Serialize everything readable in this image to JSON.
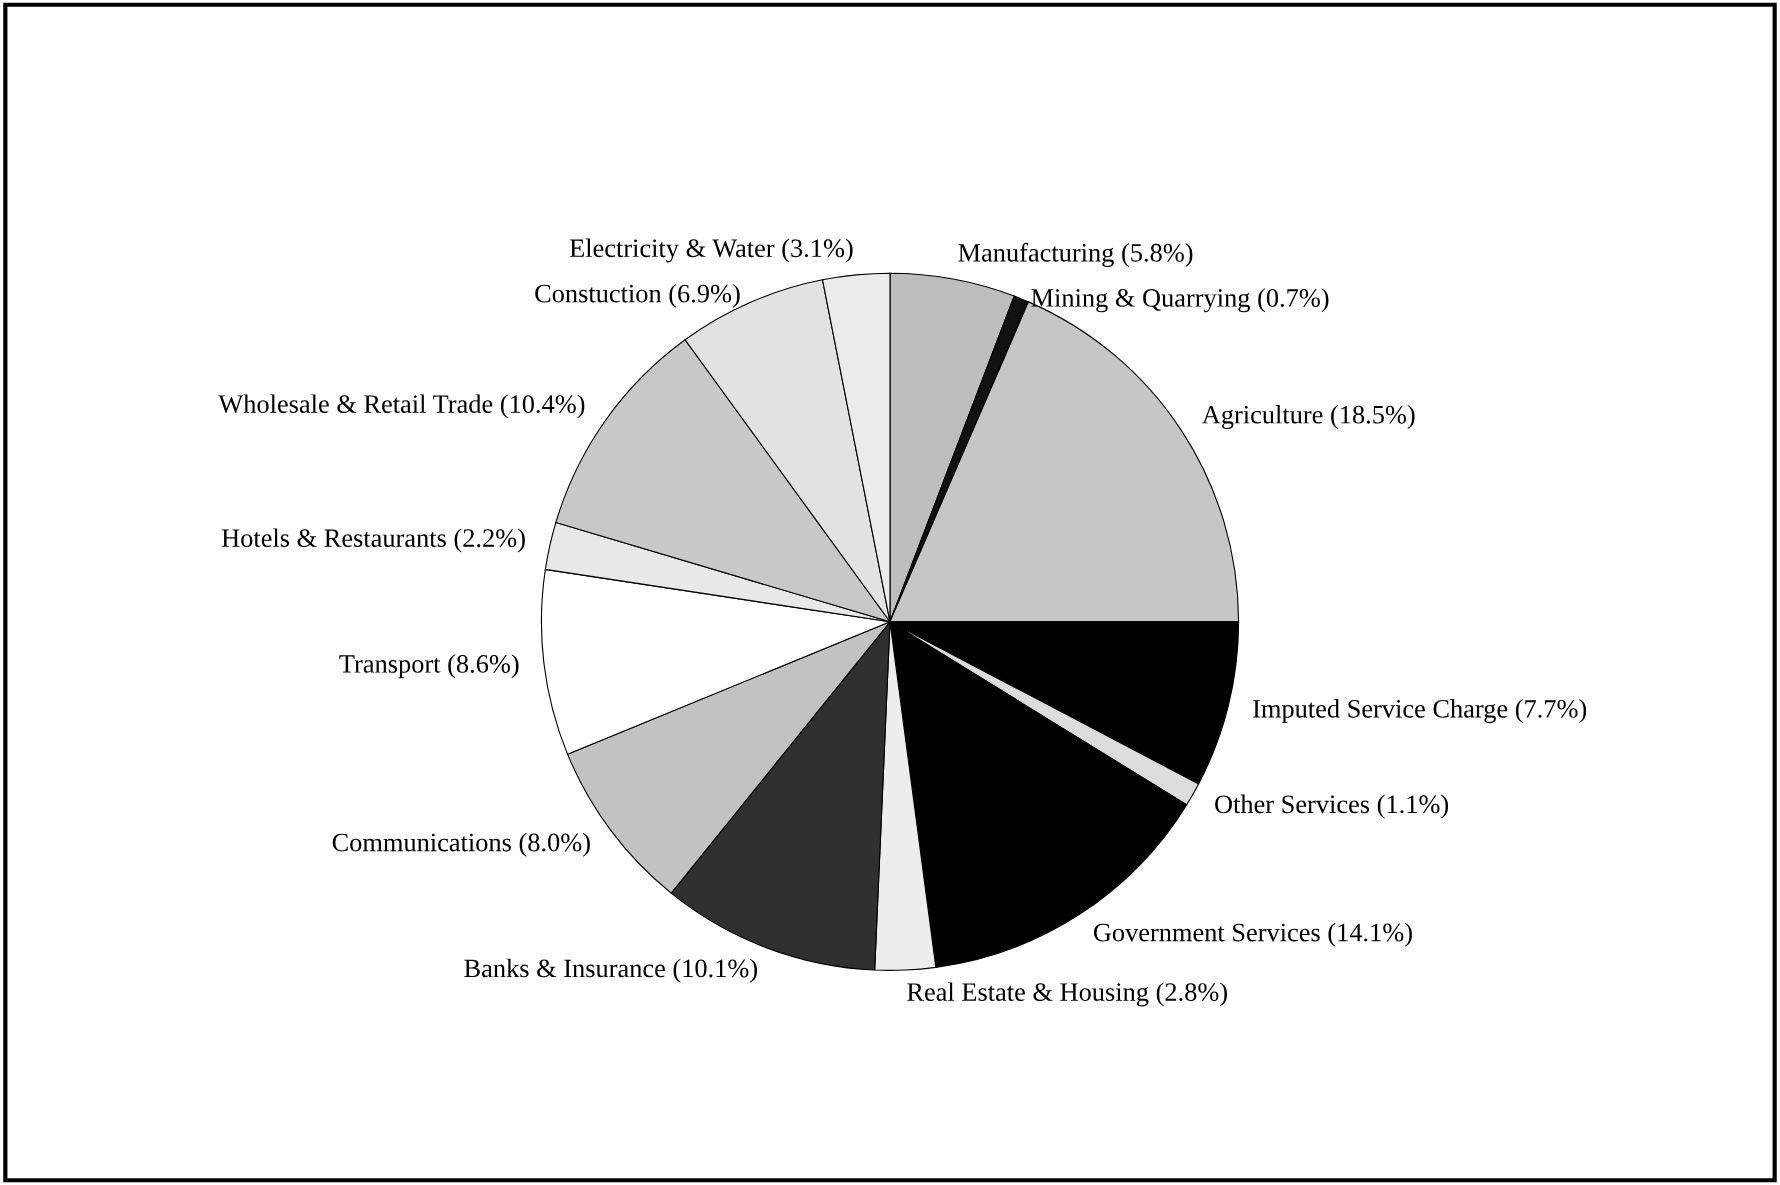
{
  "chart_data": {
    "type": "pie",
    "categories": [
      "Manufacturing",
      "Mining & Quarrying",
      "Agriculture",
      "Imputed Service Charge",
      "Other Services",
      "Government Services",
      "Real Estate & Housing",
      "Banks & Insurance",
      "Communications",
      "Transport",
      "Hotels & Restaurants",
      "Wholesale & Retail Trade",
      "Constuction",
      "Electricity & Water"
    ],
    "values": [
      5.8,
      0.7,
      18.5,
      7.7,
      1.1,
      14.1,
      2.8,
      10.1,
      8.0,
      8.6,
      2.2,
      10.4,
      6.9,
      3.1
    ],
    "value_labels": [
      "(5.8%)",
      "(0.7%)",
      "(18.5%)",
      "(7.7%)",
      "(1.1%)",
      "(14.1%)",
      "(2.8%)",
      "(10.1%)",
      "(8.0%)",
      "(8.6%)",
      "(2.2%)",
      "(10.4%)",
      "(6.9%)",
      "(3.1%)"
    ],
    "colors": [
      "#bdbdbd",
      "#111111",
      "#c6c6c6",
      "#000000",
      "#dcdcdc",
      "#000000",
      "#ededed",
      "#303030",
      "#c2c2c2",
      "#ffffff",
      "#e8e8e8",
      "#c8c8c8",
      "#e2e2e2",
      "#ebebeb"
    ]
  }
}
